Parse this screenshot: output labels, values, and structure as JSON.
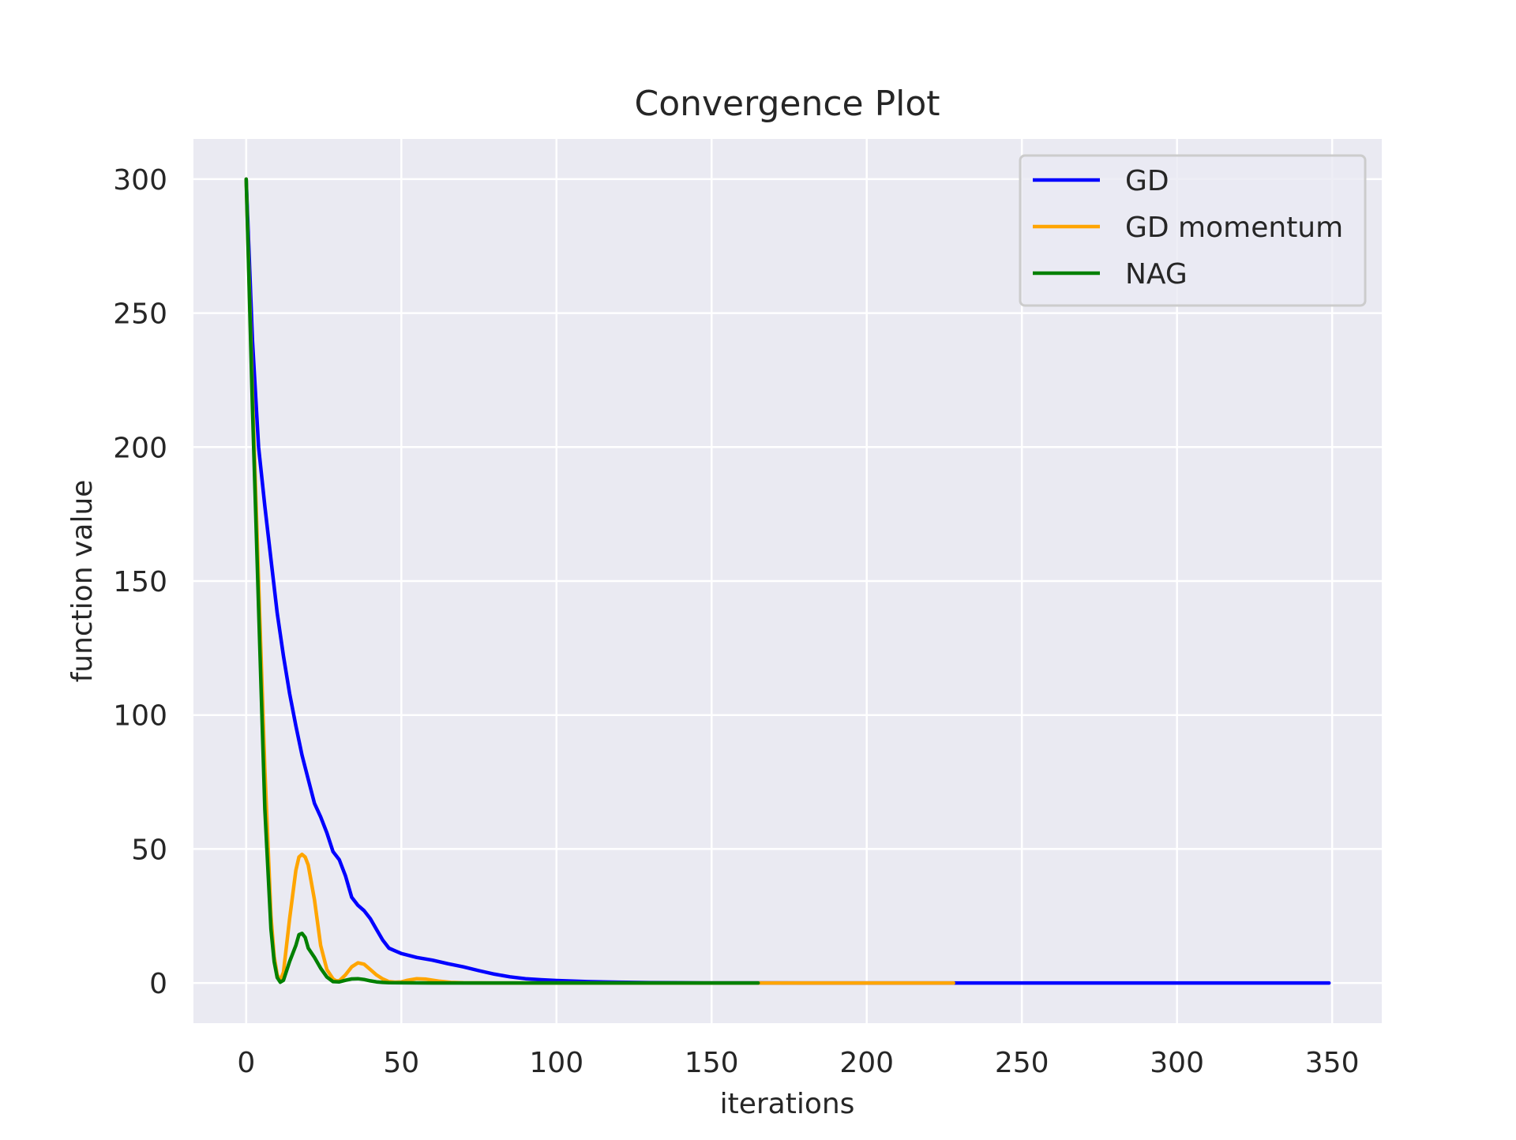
{
  "chart_data": {
    "type": "line",
    "title": "Convergence Plot",
    "xlabel": "iterations",
    "ylabel": "function value",
    "xlim": [
      -17,
      366
    ],
    "ylim": [
      -15,
      315
    ],
    "xticks": [
      0,
      50,
      100,
      150,
      200,
      250,
      300,
      350
    ],
    "yticks": [
      0,
      50,
      100,
      150,
      200,
      250,
      300
    ],
    "grid": true,
    "legend_position": "top-right",
    "colors": {
      "background": "#eaeaf2",
      "grid": "#ffffff",
      "text": "#262626"
    },
    "series": [
      {
        "name": "GD",
        "color": "#0000ff",
        "x": [
          0,
          2,
          4,
          6,
          8,
          10,
          12,
          14,
          16,
          18,
          20,
          22,
          24,
          26,
          28,
          30,
          32,
          34,
          36,
          38,
          40,
          42,
          44,
          46,
          48,
          50,
          55,
          60,
          65,
          70,
          75,
          80,
          85,
          90,
          95,
          100,
          110,
          120,
          130,
          140,
          150,
          160,
          180,
          200,
          230,
          260,
          300,
          349
        ],
        "y": [
          300,
          240,
          200,
          178,
          158,
          138,
          122,
          108,
          96,
          85,
          76,
          67,
          62,
          56,
          49,
          46,
          40,
          32,
          29,
          27,
          24,
          20,
          16,
          13,
          12,
          11,
          9.5,
          8.5,
          7.2,
          6.0,
          4.6,
          3.3,
          2.3,
          1.6,
          1.2,
          0.9,
          0.5,
          0.3,
          0.15,
          0.08,
          0.04,
          0.02,
          0.01,
          0.0,
          0.0,
          0.0,
          0.0,
          0.0
        ]
      },
      {
        "name": "GD momentum",
        "color": "#ffa500",
        "x": [
          0,
          2,
          4,
          6,
          8,
          9,
          10,
          11,
          12,
          14,
          16,
          17,
          18,
          19,
          20,
          22,
          24,
          26,
          28,
          29,
          30,
          32,
          34,
          36,
          38,
          40,
          42,
          44,
          46,
          48,
          50,
          52,
          55,
          58,
          62,
          66,
          70,
          80,
          100,
          150,
          200,
          228
        ],
        "y": [
          300,
          220,
          150,
          80,
          25,
          10,
          3,
          1,
          4,
          24,
          42,
          47,
          48,
          47,
          44,
          31,
          14,
          5,
          1.5,
          0.8,
          0.8,
          3,
          6,
          7.5,
          7,
          5,
          3,
          1.5,
          0.5,
          0.3,
          0.4,
          1.0,
          1.6,
          1.4,
          0.7,
          0.2,
          0.05,
          0.0,
          0.0,
          0.0,
          0.0,
          0.0
        ]
      },
      {
        "name": "NAG",
        "color": "#008000",
        "x": [
          0,
          2,
          4,
          6,
          8,
          9,
          10,
          11,
          12,
          14,
          16,
          17,
          18,
          19,
          20,
          22,
          24,
          26,
          28,
          30,
          32,
          34,
          36,
          38,
          40,
          42,
          44,
          46,
          50,
          55,
          60,
          70,
          80,
          100,
          130,
          165
        ],
        "y": [
          300,
          215,
          140,
          65,
          20,
          8,
          2,
          0.3,
          1,
          8,
          14,
          18,
          18.5,
          17,
          13,
          9.5,
          5.5,
          2.2,
          0.5,
          0.4,
          1.0,
          1.5,
          1.6,
          1.3,
          0.8,
          0.4,
          0.2,
          0.1,
          0.05,
          0.02,
          0.0,
          0.0,
          0.0,
          0.0,
          0.0,
          0.0
        ]
      }
    ]
  }
}
